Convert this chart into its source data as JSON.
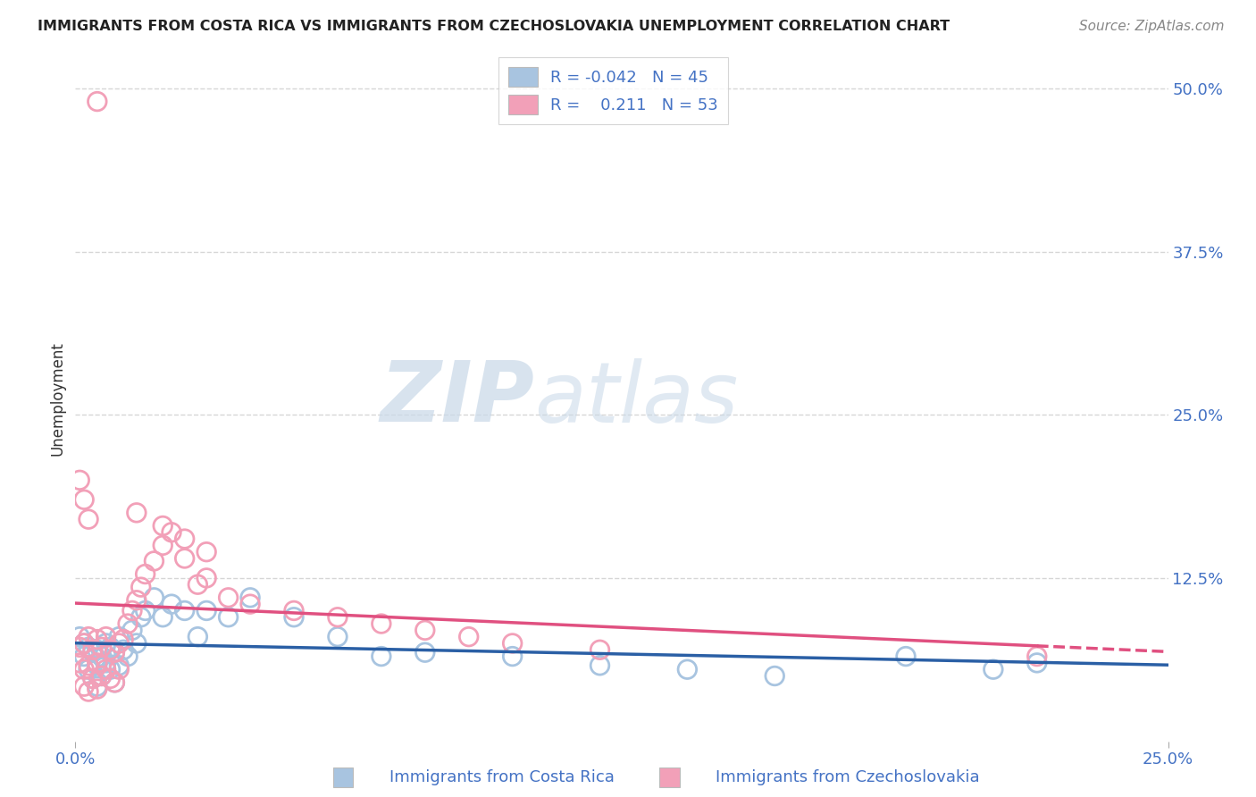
{
  "title": "IMMIGRANTS FROM COSTA RICA VS IMMIGRANTS FROM CZECHOSLOVAKIA UNEMPLOYMENT CORRELATION CHART",
  "source": "Source: ZipAtlas.com",
  "xlabel_blue": "Immigrants from Costa Rica",
  "xlabel_pink": "Immigrants from Czechoslovakia",
  "ylabel": "Unemployment",
  "xlim": [
    0.0,
    0.25
  ],
  "ylim": [
    0.0,
    0.525
  ],
  "ytick_vals": [
    0.0,
    0.125,
    0.25,
    0.375,
    0.5
  ],
  "ytick_labels": [
    "",
    "12.5%",
    "25.0%",
    "37.5%",
    "50.0%"
  ],
  "xtick_vals": [
    0.0,
    0.25
  ],
  "xtick_labels": [
    "0.0%",
    "25.0%"
  ],
  "legend_R_blue": "-0.042",
  "legend_N_blue": "45",
  "legend_R_pink": "0.211",
  "legend_N_pink": "53",
  "blue_color": "#a8c4e0",
  "pink_color": "#f2a0b8",
  "trend_blue_color": "#2a5fa5",
  "trend_pink_color": "#e05080",
  "watermark_zip": "ZIP",
  "watermark_atlas": "atlas",
  "background_color": "#ffffff",
  "grid_color": "#cccccc",
  "label_color": "#4472c4",
  "title_color": "#222222",
  "source_color": "#888888",
  "blue_x": [
    0.001,
    0.002,
    0.002,
    0.003,
    0.003,
    0.004,
    0.004,
    0.005,
    0.005,
    0.005,
    0.006,
    0.006,
    0.007,
    0.007,
    0.008,
    0.008,
    0.009,
    0.009,
    0.01,
    0.01,
    0.011,
    0.012,
    0.013,
    0.014,
    0.015,
    0.016,
    0.018,
    0.02,
    0.022,
    0.025,
    0.028,
    0.03,
    0.035,
    0.04,
    0.05,
    0.06,
    0.07,
    0.08,
    0.1,
    0.12,
    0.14,
    0.16,
    0.19,
    0.21,
    0.22
  ],
  "blue_y": [
    0.08,
    0.075,
    0.065,
    0.072,
    0.055,
    0.068,
    0.048,
    0.07,
    0.058,
    0.042,
    0.065,
    0.05,
    0.075,
    0.06,
    0.072,
    0.055,
    0.068,
    0.045,
    0.08,
    0.058,
    0.07,
    0.065,
    0.085,
    0.075,
    0.095,
    0.1,
    0.11,
    0.095,
    0.105,
    0.1,
    0.08,
    0.1,
    0.095,
    0.11,
    0.095,
    0.08,
    0.065,
    0.068,
    0.065,
    0.058,
    0.055,
    0.05,
    0.065,
    0.055,
    0.06
  ],
  "pink_x": [
    0.001,
    0.001,
    0.002,
    0.002,
    0.002,
    0.003,
    0.003,
    0.003,
    0.004,
    0.004,
    0.005,
    0.005,
    0.005,
    0.006,
    0.006,
    0.007,
    0.007,
    0.008,
    0.008,
    0.009,
    0.009,
    0.01,
    0.01,
    0.011,
    0.012,
    0.013,
    0.014,
    0.015,
    0.016,
    0.018,
    0.02,
    0.022,
    0.025,
    0.028,
    0.03,
    0.035,
    0.04,
    0.05,
    0.06,
    0.07,
    0.08,
    0.09,
    0.1,
    0.12,
    0.014,
    0.02,
    0.025,
    0.03,
    0.22,
    0.001,
    0.002,
    0.003,
    0.005
  ],
  "pink_y": [
    0.072,
    0.06,
    0.075,
    0.055,
    0.042,
    0.08,
    0.058,
    0.038,
    0.07,
    0.048,
    0.078,
    0.06,
    0.04,
    0.072,
    0.05,
    0.08,
    0.055,
    0.07,
    0.048,
    0.068,
    0.045,
    0.075,
    0.055,
    0.078,
    0.09,
    0.1,
    0.108,
    0.118,
    0.128,
    0.138,
    0.15,
    0.16,
    0.14,
    0.12,
    0.125,
    0.11,
    0.105,
    0.1,
    0.095,
    0.09,
    0.085,
    0.08,
    0.075,
    0.07,
    0.175,
    0.165,
    0.155,
    0.145,
    0.065,
    0.2,
    0.185,
    0.17,
    0.49
  ]
}
